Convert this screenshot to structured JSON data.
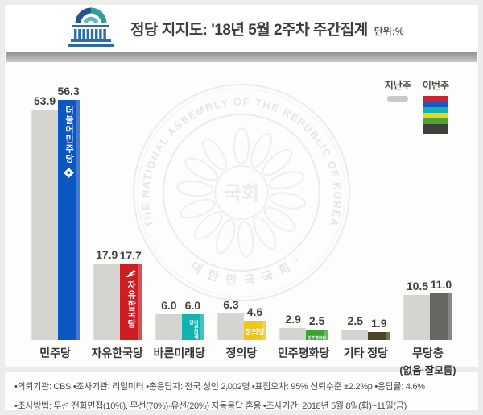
{
  "header": {
    "title": "정당 지지도: '18년 5월 2주차 주간집계",
    "unit_label": "단위:%",
    "logo_icon": "national-assembly-building-icon"
  },
  "legend": {
    "last_week_label": "지난주",
    "this_week_label": "이번주",
    "last_week_color": "#c9c8c6",
    "this_week_colors": [
      "#cd2232",
      "#1d55c2",
      "#12b2ae",
      "#ecd51c",
      "#4aa637",
      "#413f3c"
    ]
  },
  "chart_data": {
    "type": "bar",
    "title": "정당 지지도: '18년 5월 2주차 주간집계",
    "unit": "%",
    "ylim": [
      0,
      60
    ],
    "grid": false,
    "legend_position": "top-right",
    "series_names": [
      "지난주",
      "이번주"
    ],
    "categories": [
      "민주당",
      "자유한국당",
      "바른미래당",
      "정의당",
      "민주평화당",
      "기타 정당",
      "무당층 (없음·잘모름)"
    ],
    "series": [
      {
        "name": "지난주",
        "values": [
          53.9,
          17.9,
          6.0,
          6.3,
          2.9,
          2.5,
          10.5
        ]
      },
      {
        "name": "이번주",
        "values": [
          56.3,
          17.7,
          6.0,
          4.6,
          2.5,
          1.9,
          11.0
        ]
      }
    ],
    "groups": [
      {
        "label": "민주당",
        "sublabel": "",
        "last_week": 53.9,
        "this_week": 56.3,
        "color": "#0d57c5",
        "bar_text": "더불어민주당",
        "text_style": "vertical",
        "logo": "minjoo-diamond-icon"
      },
      {
        "label": "자유한국당",
        "sublabel": "",
        "last_week": 17.9,
        "this_week": 17.7,
        "color": "#cd1e26",
        "bar_text": "자유한국당",
        "text_style": "vertical",
        "logo": "lkp-torch-icon"
      },
      {
        "label": "바른미래당",
        "sublabel": "",
        "last_week": 6.0,
        "this_week": 6.0,
        "color": "#12b2ae",
        "bar_text": "바른미래당",
        "text_style": "vertical-tiny",
        "logo": ""
      },
      {
        "label": "정의당",
        "sublabel": "",
        "last_week": 6.3,
        "this_week": 4.6,
        "color": "#f3c517",
        "bar_text": "정의당",
        "text_style": "horizontal",
        "logo": ""
      },
      {
        "label": "민주평화당",
        "sublabel": "",
        "last_week": 2.9,
        "this_week": 2.5,
        "color": "#3ca338",
        "bar_text": "민주평화당",
        "text_style": "micro",
        "logo": ""
      },
      {
        "label": "기타 정당",
        "sublabel": "",
        "last_week": 2.5,
        "this_week": 1.9,
        "color": "#4e4526",
        "bar_text": "",
        "text_style": "",
        "logo": ""
      },
      {
        "label": "무당층",
        "sublabel": "(없음·잘모름)",
        "last_week": 10.5,
        "this_week": 11.0,
        "color": "#666663",
        "bar_text": "",
        "text_style": "",
        "logo": ""
      }
    ],
    "gray_color": "#d5d4d1"
  },
  "watermark": {
    "seal_top_text": "THE NATIONAL ASSEMBLY OF THE REPUBLIC OF KOREA",
    "seal_bottom_text": "· 대 한 민 국 국 회 ·",
    "seal_center_text": "국회"
  },
  "footer": {
    "line1": "•의뢰기관: CBS  •조사기관: 리얼미터  •총응답자: 전국 성인 2,002명  •표집오차: 95% 신뢰수준 ±2.2%p  •응답률: 4.6%",
    "line2": "•조사방법: 무선 전화면접(10%), 무선(70%)·유선(20%) 자동응답 혼용  •조사기간: 2018년 5월 8일(화)~11일(금)"
  }
}
